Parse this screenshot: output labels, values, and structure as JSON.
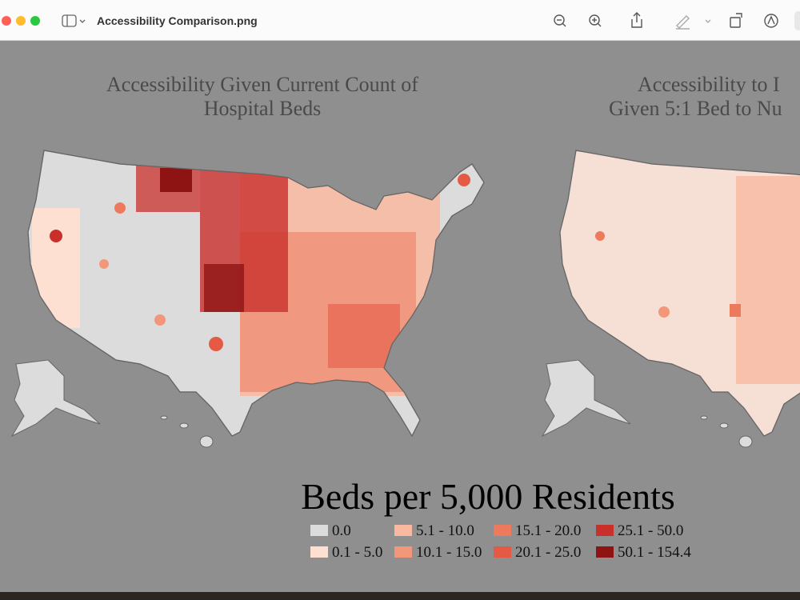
{
  "window": {
    "title": "Accessibility Comparison.png"
  },
  "image": {
    "maps": [
      {
        "title_lines": [
          "Accessibility Given Current Count of",
          "Hospital Beds"
        ]
      },
      {
        "title_lines": [
          "Accessibility to I",
          "Given 5:1 Bed to Nu"
        ]
      }
    ],
    "legend": {
      "title": "Beds per 5,000 Residents",
      "items": [
        {
          "label": "0.0",
          "color": "#dcdcdc"
        },
        {
          "label": "0.1 - 5.0",
          "color": "#fde0d2"
        },
        {
          "label": "5.1 - 10.0",
          "color": "#f8b9a0"
        },
        {
          "label": "10.1 - 15.0",
          "color": "#f3977a"
        },
        {
          "label": "15.1 - 20.0",
          "color": "#ee7a5e"
        },
        {
          "label": "20.1 - 25.0",
          "color": "#e45a45"
        },
        {
          "label": "25.1 - 50.0",
          "color": "#c9302c"
        },
        {
          "label": "50.1 - 154.4",
          "color": "#8e1414"
        }
      ]
    }
  }
}
